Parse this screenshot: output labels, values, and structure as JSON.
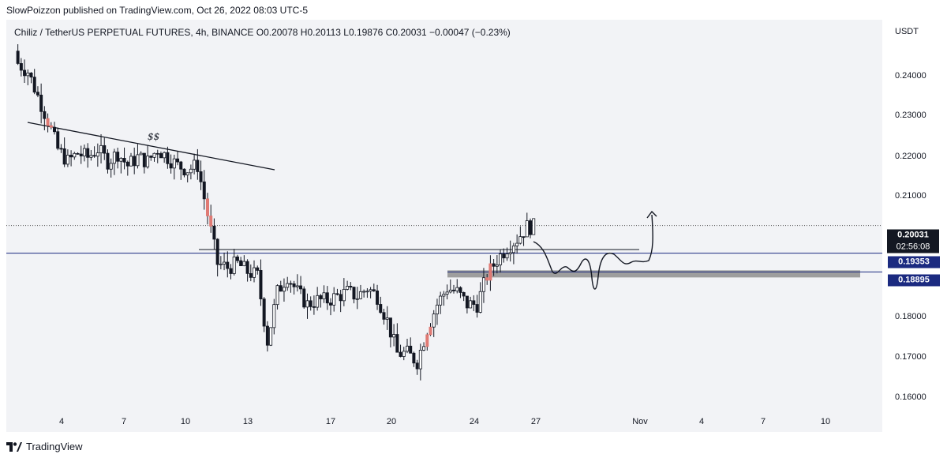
{
  "header": {
    "published": "SlowPoizzon published on TradingView.com, Oct 26, 2022 08:03 UTC-5"
  },
  "symbol": {
    "line": "Chiliz / TetherUS PERPETUAL FUTURES, 4h, BINANCE  O0.20078  H0.20113  L0.19876  C0.20031  −0.00047 (−0.23%)"
  },
  "axis": {
    "currency": "USDT",
    "price_ticks": [
      "0.24000",
      "0.23000",
      "0.22000",
      "0.21000",
      "0.18000",
      "0.17000",
      "0.16000"
    ],
    "date_ticks": [
      "4",
      "7",
      "10",
      "13",
      "17",
      "20",
      "24",
      "27",
      "Nov",
      "4",
      "7",
      "10"
    ]
  },
  "price_labels": {
    "last": "0.20031",
    "timer": "02:56:08",
    "level_1": "0.19353",
    "level_2": "0.18895"
  },
  "annotations": {
    "liquidity": "$$"
  },
  "footer": {
    "brand": "TradingView"
  },
  "colors": {
    "up": "#131722",
    "down_highlight": "#e07a74",
    "level_line": "#1b2a80",
    "zone": "#9e9e9e"
  },
  "chart_data": {
    "type": "candlestick",
    "timeframe": "4h",
    "ylim": [
      0.155,
      0.247
    ],
    "price_ticks": [
      0.24,
      0.23,
      0.22,
      0.21,
      0.18,
      0.17,
      0.16
    ],
    "last_price": 0.20031,
    "levels": [
      0.19353,
      0.18895
    ],
    "series": [
      {
        "x": 0.5,
        "close": 0.24
      },
      {
        "x": 1.0,
        "close": 0.238
      },
      {
        "x": 1.5,
        "close": 0.232
      },
      {
        "x": 2.0,
        "close": 0.226
      },
      {
        "x": 2.5,
        "close": 0.219
      },
      {
        "x": 3.0,
        "close": 0.216
      },
      {
        "x": 3.5,
        "close": 0.218
      },
      {
        "x": 4.0,
        "close": 0.217
      },
      {
        "x": 4.5,
        "close": 0.219
      },
      {
        "x": 5.0,
        "close": 0.216
      },
      {
        "x": 5.5,
        "close": 0.218
      },
      {
        "x": 6.0,
        "close": 0.215
      },
      {
        "x": 6.5,
        "close": 0.217
      },
      {
        "x": 7.0,
        "close": 0.216
      },
      {
        "x": 7.5,
        "close": 0.219
      },
      {
        "x": 8.0,
        "close": 0.217
      },
      {
        "x": 8.5,
        "close": 0.215
      },
      {
        "x": 9.0,
        "close": 0.214
      },
      {
        "x": 9.5,
        "close": 0.215
      },
      {
        "x": 10.0,
        "close": 0.203
      },
      {
        "x": 10.5,
        "close": 0.191
      },
      {
        "x": 11.0,
        "close": 0.19
      },
      {
        "x": 11.5,
        "close": 0.191
      },
      {
        "x": 12.0,
        "close": 0.189
      },
      {
        "x": 12.5,
        "close": 0.188
      },
      {
        "x": 13.0,
        "close": 0.172
      },
      {
        "x": 13.5,
        "close": 0.184
      },
      {
        "x": 14.0,
        "close": 0.188
      },
      {
        "x": 14.5,
        "close": 0.184
      },
      {
        "x": 15.0,
        "close": 0.181
      },
      {
        "x": 15.5,
        "close": 0.182
      },
      {
        "x": 16.0,
        "close": 0.182
      },
      {
        "x": 16.5,
        "close": 0.183
      },
      {
        "x": 17.0,
        "close": 0.184
      },
      {
        "x": 17.5,
        "close": 0.183
      },
      {
        "x": 18.0,
        "close": 0.185
      },
      {
        "x": 18.5,
        "close": 0.183
      },
      {
        "x": 19.0,
        "close": 0.177
      },
      {
        "x": 19.5,
        "close": 0.169
      },
      {
        "x": 20.0,
        "close": 0.169
      },
      {
        "x": 20.5,
        "close": 0.167
      },
      {
        "x": 21.0,
        "close": 0.175
      },
      {
        "x": 21.5,
        "close": 0.181
      },
      {
        "x": 22.0,
        "close": 0.185
      },
      {
        "x": 22.5,
        "close": 0.184
      },
      {
        "x": 23.0,
        "close": 0.181
      },
      {
        "x": 23.5,
        "close": 0.181
      },
      {
        "x": 24.0,
        "close": 0.188
      },
      {
        "x": 24.5,
        "close": 0.192
      },
      {
        "x": 25.0,
        "close": 0.195
      },
      {
        "x": 25.5,
        "close": 0.197
      },
      {
        "x": 26.0,
        "close": 0.2
      }
    ]
  }
}
